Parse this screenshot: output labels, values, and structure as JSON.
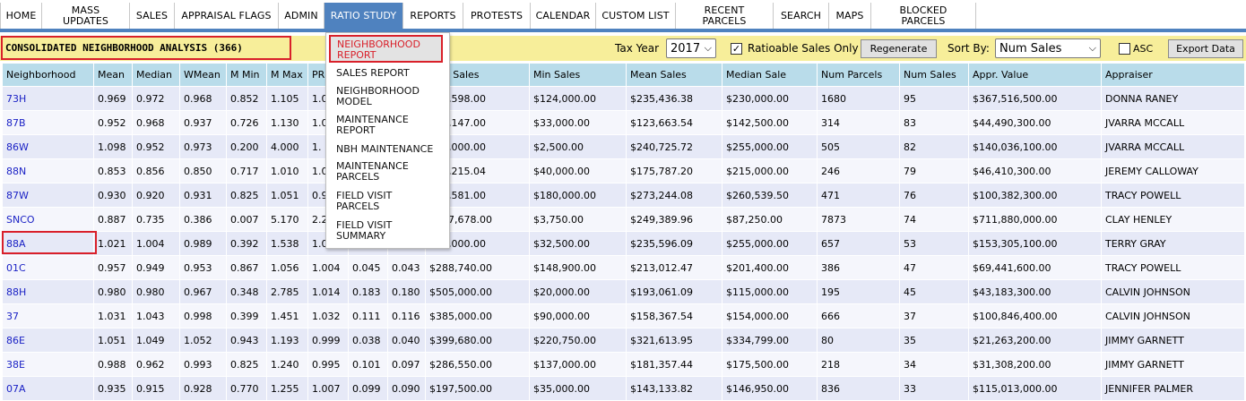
{
  "nav": {
    "items": [
      {
        "label": "HOME"
      },
      {
        "label": "MASS\nUPDATES"
      },
      {
        "label": "SALES"
      },
      {
        "label": "APPRAISAL FLAGS"
      },
      {
        "label": "ADMIN"
      },
      {
        "label": "RATIO STUDY",
        "active": true
      },
      {
        "label": "REPORTS"
      },
      {
        "label": "PROTESTS"
      },
      {
        "label": "CALENDAR"
      },
      {
        "label": "CUSTOM LIST"
      },
      {
        "label": "RECENT\nPARCELS"
      },
      {
        "label": "SEARCH"
      },
      {
        "label": "MAPS"
      },
      {
        "label": "BLOCKED\nPARCELS"
      }
    ]
  },
  "toolbar": {
    "title": "CONSOLIDATED NEIGHBORHOOD ANALYSIS (366)",
    "tax_year_label": "Tax Year",
    "tax_year_value": "2017",
    "ratioable_checked": true,
    "ratioable_label": "Ratioable Sales Only",
    "regenerate_label": "Regenerate",
    "sort_by_label": "Sort By:",
    "sort_by_value": "Num Sales",
    "asc_checked": false,
    "asc_label": "ASC",
    "export_label": "Export Data"
  },
  "dropdown": {
    "selected": "NEIGHBORHOOD\nREPORT",
    "items": [
      "SALES REPORT",
      "NEIGHBORHOOD\nMODEL",
      "MAINTENANCE\nREPORT",
      "NBH MAINTENANCE",
      "MAINTENANCE\nPARCELS",
      "FIELD VISIT\nPARCELS",
      "FIELD VISIT\nSUMMARY"
    ]
  },
  "table": {
    "columns": [
      "Neighborhood",
      "Mean",
      "Median",
      "WMean",
      "M Min",
      "M Max",
      "PRD",
      "COD",
      "",
      "Max Sales",
      "Min Sales",
      "Mean Sales",
      "Median Sale",
      "Num Parcels",
      "Num Sales",
      "Appr. Value",
      "Appraiser"
    ],
    "rows": [
      [
        "73H",
        "0.969",
        "0.972",
        "0.968",
        "0.852",
        "1.105",
        "1.0",
        "",
        "",
        "$74,598.00",
        "$124,000.00",
        "$235,436.38",
        "$230,000.00",
        "1680",
        "95",
        "$367,516,500.00",
        "DONNA RANEY"
      ],
      [
        "87B",
        "0.952",
        "0.968",
        "0.937",
        "0.726",
        "1.130",
        "1.0",
        "",
        "",
        "$33,147.00",
        "$33,000.00",
        "$123,663.54",
        "$142,500.00",
        "314",
        "83",
        "$44,490,300.00",
        "JVARRA MCCALL"
      ],
      [
        "86W",
        "1.098",
        "0.952",
        "0.973",
        "0.200",
        "4.000",
        "1.",
        "",
        "",
        "$60,000.00",
        "$2,500.00",
        "$240,725.72",
        "$255,000.00",
        "505",
        "82",
        "$140,036,100.00",
        "JVARRA MCCALL"
      ],
      [
        "88N",
        "0.853",
        "0.856",
        "0.850",
        "0.717",
        "1.010",
        "1.0",
        "",
        "",
        "$61,215.04",
        "$40,000.00",
        "$175,787.20",
        "$215,000.00",
        "246",
        "79",
        "$46,410,300.00",
        "JEREMY CALLOWAY"
      ],
      [
        "87W",
        "0.930",
        "0.920",
        "0.931",
        "0.825",
        "1.051",
        "0.9",
        "",
        "",
        "$52,581.00",
        "$180,000.00",
        "$273,244.08",
        "$260,539.50",
        "471",
        "76",
        "$100,382,300.00",
        "TRACY POWELL"
      ],
      [
        "SNCO",
        "0.887",
        "0.735",
        "0.386",
        "0.007",
        "5.170",
        "2.2",
        "",
        "",
        "$667,678.00",
        "$3,750.00",
        "$249,389.96",
        "$87,250.00",
        "7873",
        "74",
        "$711,880,000.00",
        "CLAY HENLEY"
      ],
      [
        "88A",
        "1.021",
        "1.004",
        "0.989",
        "0.392",
        "1.538",
        "1.0",
        "",
        "",
        "$15,000.00",
        "$32,500.00",
        "$235,596.09",
        "$255,000.00",
        "657",
        "53",
        "$153,305,100.00",
        "TERRY GRAY"
      ],
      [
        "01C",
        "0.957",
        "0.949",
        "0.953",
        "0.867",
        "1.056",
        "1.004",
        "0.045",
        "0.043",
        "$288,740.00",
        "$148,900.00",
        "$213,012.47",
        "$201,400.00",
        "386",
        "47",
        "$69,441,600.00",
        "TRACY POWELL"
      ],
      [
        "88H",
        "0.980",
        "0.980",
        "0.967",
        "0.348",
        "2.785",
        "1.014",
        "0.183",
        "0.180",
        "$505,000.00",
        "$20,000.00",
        "$193,061.09",
        "$115,000.00",
        "195",
        "45",
        "$43,183,300.00",
        "CALVIN JOHNSON"
      ],
      [
        "37",
        "1.031",
        "1.043",
        "0.998",
        "0.399",
        "1.451",
        "1.032",
        "0.111",
        "0.116",
        "$385,000.00",
        "$90,000.00",
        "$158,367.54",
        "$154,000.00",
        "666",
        "37",
        "$100,846,400.00",
        "CALVIN JOHNSON"
      ],
      [
        "86E",
        "1.051",
        "1.049",
        "1.052",
        "0.943",
        "1.193",
        "0.999",
        "0.038",
        "0.040",
        "$399,680.00",
        "$220,750.00",
        "$321,613.95",
        "$334,799.00",
        "80",
        "35",
        "$21,263,200.00",
        "JIMMY GARNETT"
      ],
      [
        "38E",
        "0.988",
        "0.962",
        "0.993",
        "0.825",
        "1.240",
        "0.995",
        "0.101",
        "0.097",
        "$286,550.00",
        "$137,000.00",
        "$181,357.44",
        "$175,500.00",
        "218",
        "34",
        "$31,308,200.00",
        "JIMMY GARNETT"
      ],
      [
        "07A",
        "0.935",
        "0.915",
        "0.928",
        "0.770",
        "1.255",
        "1.007",
        "0.099",
        "0.090",
        "$197,500.00",
        "$35,000.00",
        "$143,133.82",
        "$146,950.00",
        "836",
        "33",
        "$115,013,000.00",
        "JENNIFER PALMER"
      ]
    ]
  }
}
